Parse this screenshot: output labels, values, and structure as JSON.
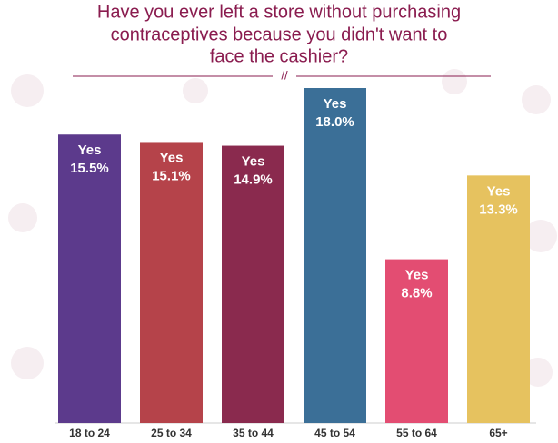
{
  "chart_data": {
    "type": "bar",
    "title": [
      "Have you ever left a store without purchasing",
      "contraceptives because you didn't want to",
      "face the cashier?"
    ],
    "categories": [
      "18 to 24",
      "25 to 34",
      "35 to 44",
      "45 to 54",
      "55 to 64",
      "65+"
    ],
    "series": [
      {
        "name": "Yes",
        "values": [
          15.5,
          15.1,
          14.9,
          18.0,
          8.8,
          13.3
        ],
        "value_labels": [
          "15.5%",
          "15.1%",
          "14.9%",
          "18.0%",
          "8.8%",
          "13.3%"
        ],
        "colors": [
          "#5c3a8c",
          "#b5434a",
          "#8a2a4e",
          "#3b6f97",
          "#e34d72",
          "#e6c25f"
        ]
      }
    ]
  }
}
